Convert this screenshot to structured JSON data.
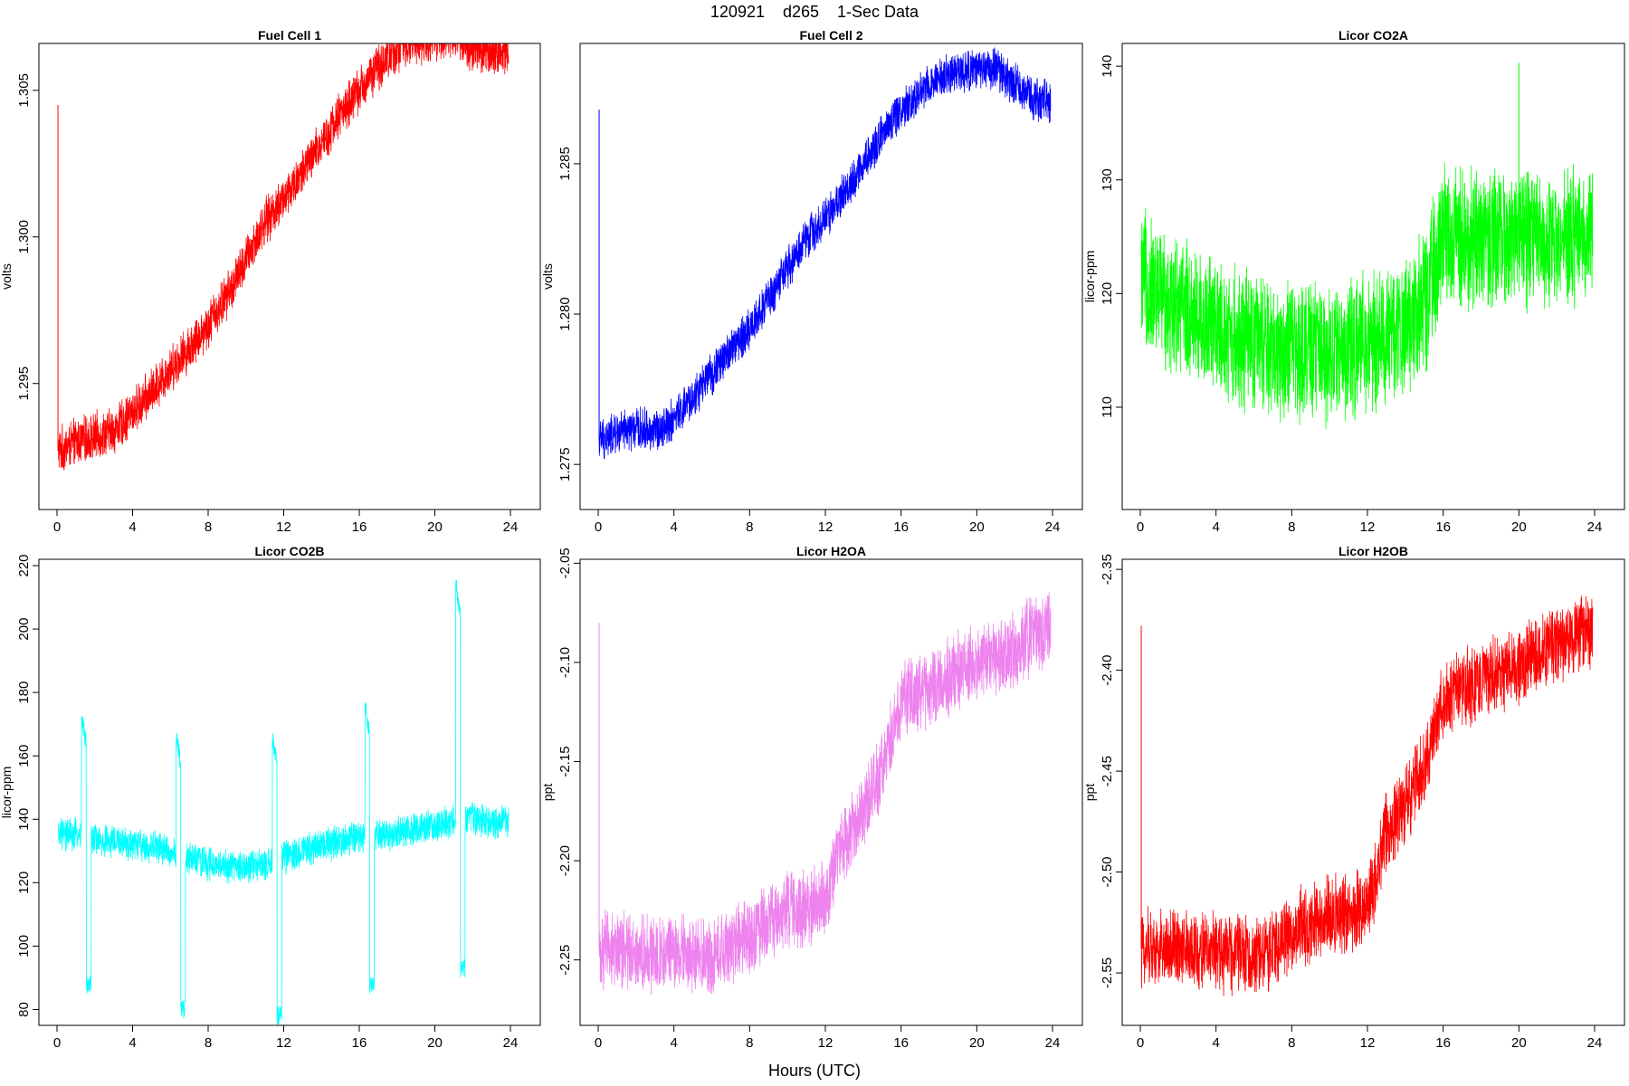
{
  "figure": {
    "suptitle": "120921    d265    1-Sec Data",
    "xlabel": "Hours (UTC)"
  },
  "chart_data": [
    {
      "type": "line",
      "title": "Fuel Cell 1",
      "ylabel": "volts",
      "color": "#ff0000",
      "xlim": [
        0,
        24
      ],
      "ylim": [
        1.2907,
        1.3066
      ],
      "xticks": [
        0,
        4,
        8,
        12,
        16,
        20,
        24
      ],
      "yticks": [
        1.295,
        1.3,
        1.305
      ],
      "ytick_labels": [
        "1.295",
        "1.300",
        "1.305"
      ],
      "x": [
        0.05,
        1,
        2,
        3,
        4,
        5,
        6,
        7,
        8,
        9,
        10,
        11,
        12,
        13,
        14,
        15,
        16,
        17,
        18,
        19,
        20,
        21,
        22,
        23,
        23.9
      ],
      "y": [
        1.2927,
        1.293,
        1.2932,
        1.2934,
        1.294,
        1.2947,
        1.2955,
        1.2962,
        1.297,
        1.298,
        1.2992,
        1.3005,
        1.3013,
        1.3022,
        1.3032,
        1.3042,
        1.305,
        1.3058,
        1.3064,
        1.3067,
        1.3068,
        1.3069,
        1.3064,
        1.3063,
        1.3064
      ],
      "noise": 0.0009,
      "spike": {
        "x": 0.05,
        "y": 1.3045
      }
    },
    {
      "type": "line",
      "title": "Fuel Cell 2",
      "ylabel": "volts",
      "color": "#0000ff",
      "xlim": [
        0,
        24
      ],
      "ylim": [
        1.2735,
        1.289
      ],
      "xticks": [
        0,
        4,
        8,
        12,
        16,
        20,
        24
      ],
      "yticks": [
        1.275,
        1.28,
        1.285
      ],
      "ytick_labels": [
        "1.275",
        "1.280",
        "1.285"
      ],
      "x": [
        0.05,
        1,
        2,
        3,
        4,
        5,
        6,
        7,
        8,
        9,
        10,
        11,
        12,
        13,
        14,
        15,
        16,
        17,
        18,
        19,
        20,
        21,
        22,
        23,
        23.9
      ],
      "y": [
        1.2758,
        1.276,
        1.2762,
        1.2761,
        1.2765,
        1.2772,
        1.278,
        1.2788,
        1.2795,
        1.2805,
        1.2815,
        1.2825,
        1.2832,
        1.284,
        1.285,
        1.286,
        1.2868,
        1.2874,
        1.2879,
        1.288,
        1.2881,
        1.2882,
        1.2876,
        1.2872,
        1.287
      ],
      "noise": 0.0008,
      "spike": {
        "x": 0.05,
        "y": 1.2868
      }
    },
    {
      "type": "line",
      "title": "Licor CO2A",
      "ylabel": "licor-ppm",
      "color": "#00ff00",
      "xlim": [
        0,
        24
      ],
      "ylim": [
        101,
        142
      ],
      "xticks": [
        0,
        4,
        8,
        12,
        16,
        20,
        24
      ],
      "yticks": [
        110,
        120,
        130,
        140
      ],
      "ytick_labels": [
        "110",
        "120",
        "130",
        "140"
      ],
      "x": [
        0.05,
        1,
        2,
        3,
        4,
        5,
        6,
        7,
        8,
        9,
        10,
        11,
        12,
        13,
        14,
        15,
        16,
        17,
        18,
        19,
        20,
        21,
        22,
        23,
        23.9
      ],
      "y": [
        121,
        120,
        119,
        118,
        117,
        116,
        115.5,
        115,
        115,
        115,
        115,
        115,
        115.5,
        116,
        117.5,
        119,
        125,
        125,
        125,
        125,
        125,
        125,
        125,
        125,
        125
      ],
      "noise": 7,
      "spike": {
        "x": 20,
        "y": 140.3
      }
    },
    {
      "type": "line",
      "title": "Licor CO2B",
      "ylabel": "licor-ppm",
      "color": "#00ffff",
      "xlim": [
        0,
        24
      ],
      "ylim": [
        75,
        222
      ],
      "xticks": [
        0,
        4,
        8,
        12,
        16,
        20,
        24
      ],
      "yticks": [
        80,
        100,
        120,
        140,
        160,
        180,
        200,
        220
      ],
      "ytick_labels": [
        "80",
        "100",
        "120",
        "140",
        "160",
        "180",
        "200",
        "220"
      ],
      "x": [
        0.05,
        1,
        2,
        3,
        4,
        5,
        6,
        7,
        8,
        9,
        10,
        11,
        12,
        13,
        14,
        15,
        16,
        17,
        18,
        19,
        20,
        21,
        22,
        23,
        23.9
      ],
      "y": [
        135,
        135,
        134,
        133,
        132,
        131,
        130,
        128,
        126,
        125,
        125,
        126,
        128,
        130,
        132,
        133,
        134,
        135,
        136,
        137,
        138,
        139,
        140,
        139,
        139
      ],
      "noise": 6,
      "events": [
        {
          "x": 1.3,
          "w": 0.25,
          "up": 172,
          "down": 88
        },
        {
          "x": 6.3,
          "w": 0.25,
          "up": 166,
          "down": 80
        },
        {
          "x": 11.4,
          "w": 0.25,
          "up": 166,
          "down": 78
        },
        {
          "x": 16.3,
          "w": 0.25,
          "up": 176,
          "down": 88
        },
        {
          "x": 21.1,
          "w": 0.25,
          "up": 216,
          "down": 93
        }
      ]
    },
    {
      "type": "line",
      "title": "Licor H2OA",
      "ylabel": "ppt",
      "color": "#ee82ee",
      "xlim": [
        0,
        24
      ],
      "ylim": [
        -2.283,
        -2.048
      ],
      "xticks": [
        0,
        4,
        8,
        12,
        16,
        20,
        24
      ],
      "yticks": [
        -2.25,
        -2.2,
        -2.15,
        -2.1,
        -2.05
      ],
      "ytick_labels": [
        "-2.25",
        "-2.20",
        "-2.15",
        "-2.10",
        "-2.05"
      ],
      "x": [
        0.05,
        1,
        2,
        3,
        4,
        5,
        6,
        7,
        8,
        9,
        10,
        11,
        12,
        13,
        14,
        15,
        16,
        17,
        18,
        19,
        20,
        21,
        22,
        23,
        23.9
      ],
      "y": [
        -2.245,
        -2.245,
        -2.246,
        -2.247,
        -2.247,
        -2.248,
        -2.248,
        -2.245,
        -2.238,
        -2.23,
        -2.225,
        -2.225,
        -2.22,
        -2.19,
        -2.175,
        -2.155,
        -2.12,
        -2.115,
        -2.11,
        -2.105,
        -2.1,
        -2.098,
        -2.095,
        -2.085,
        -2.083
      ],
      "noise": 0.022,
      "spike": {
        "x": 0.05,
        "y": -2.08
      }
    },
    {
      "type": "line",
      "title": "Licor H2OB",
      "ylabel": "ppt",
      "color": "#ff0000",
      "xlim": [
        0,
        24
      ],
      "ylim": [
        -2.576,
        -2.345
      ],
      "xticks": [
        0,
        4,
        8,
        12,
        16,
        20,
        24
      ],
      "yticks": [
        -2.55,
        -2.5,
        -2.45,
        -2.4,
        -2.35
      ],
      "ytick_labels": [
        "-2.55",
        "-2.50",
        "-2.45",
        "-2.40",
        "-2.35"
      ],
      "x": [
        0.05,
        1,
        2,
        3,
        4,
        5,
        6,
        7,
        8,
        9,
        10,
        11,
        12,
        13,
        14,
        15,
        16,
        17,
        18,
        19,
        20,
        21,
        22,
        23,
        23.9
      ],
      "y": [
        -2.538,
        -2.538,
        -2.538,
        -2.539,
        -2.54,
        -2.541,
        -2.542,
        -2.538,
        -2.53,
        -2.525,
        -2.522,
        -2.52,
        -2.518,
        -2.48,
        -2.465,
        -2.45,
        -2.415,
        -2.41,
        -2.405,
        -2.402,
        -2.398,
        -2.392,
        -2.388,
        -2.382,
        -2.382
      ],
      "noise": 0.022,
      "spike": {
        "x": 0.05,
        "y": -2.378
      }
    }
  ]
}
